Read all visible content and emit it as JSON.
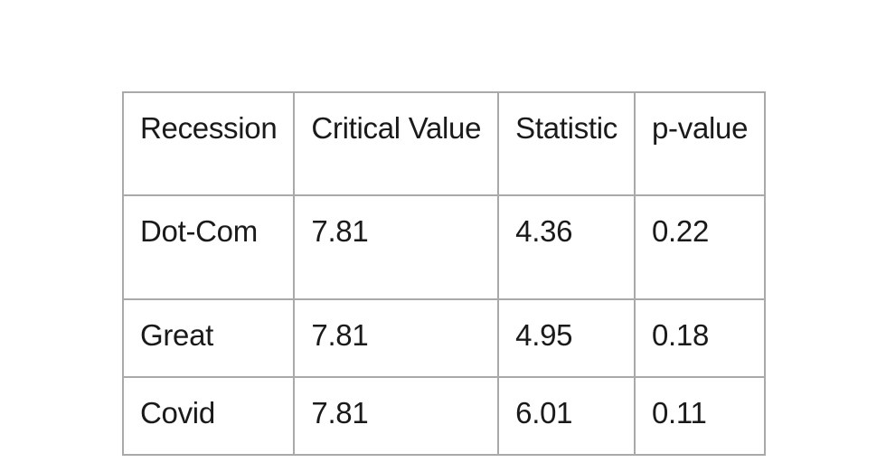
{
  "table": {
    "headers": [
      "Recession",
      "Critical Value",
      "Statistic",
      "p-value"
    ],
    "rows": [
      [
        "Dot-Com",
        "7.81",
        "4.36",
        "0.22"
      ],
      [
        "Great",
        "7.81",
        "4.95",
        "0.18"
      ],
      [
        "Covid",
        "7.81",
        "6.01",
        "0.11"
      ]
    ]
  }
}
